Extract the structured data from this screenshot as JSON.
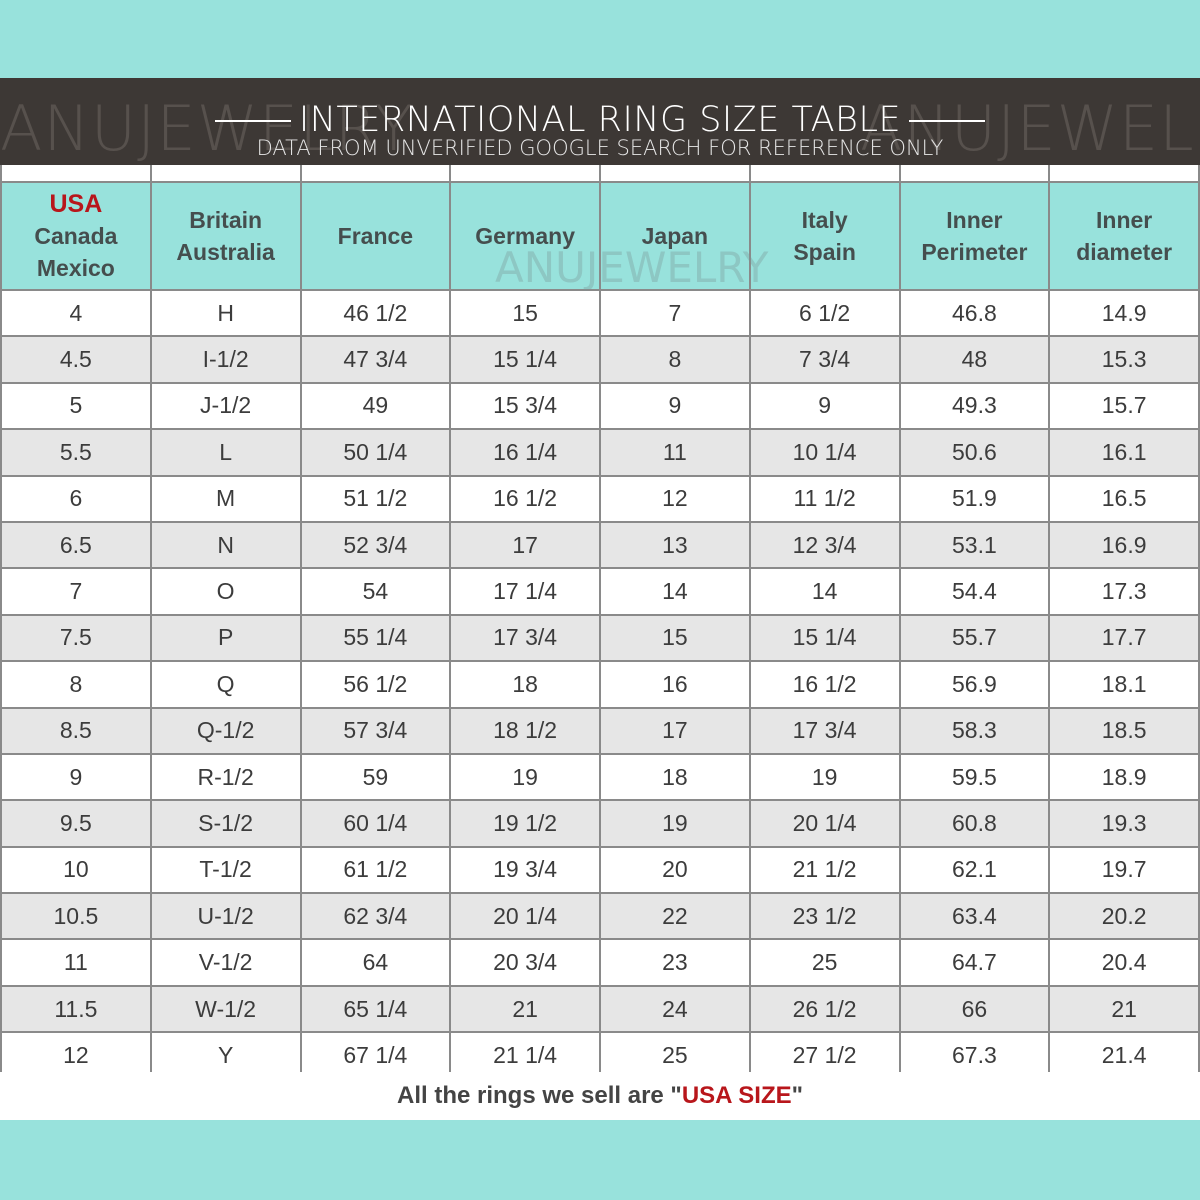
{
  "watermark": "ANUJEWELRY",
  "banner": {
    "title": "INTERNATIONAL RING SIZE TABLE",
    "subtitle": "DATA FROM UNVERIFIED GOOGLE SEARCH FOR REFERENCE ONLY"
  },
  "headers": [
    {
      "lines": [
        "USA",
        "Canada",
        "Mexico"
      ]
    },
    {
      "lines": [
        "Britain",
        "Australia"
      ]
    },
    {
      "lines": [
        "France"
      ]
    },
    {
      "lines": [
        "Germany"
      ]
    },
    {
      "lines": [
        "Japan"
      ]
    },
    {
      "lines": [
        "Italy",
        "Spain"
      ]
    },
    {
      "lines": [
        "Inner",
        "Perimeter"
      ]
    },
    {
      "lines": [
        "Inner",
        "diameter"
      ]
    }
  ],
  "rows": [
    [
      "4",
      "H",
      "46 1/2",
      "15",
      "7",
      "6 1/2",
      "46.8",
      "14.9"
    ],
    [
      "4.5",
      "I-1/2",
      "47 3/4",
      "15 1/4",
      "8",
      "7 3/4",
      "48",
      "15.3"
    ],
    [
      "5",
      "J-1/2",
      "49",
      "15 3/4",
      "9",
      "9",
      "49.3",
      "15.7"
    ],
    [
      "5.5",
      "L",
      "50 1/4",
      "16 1/4",
      "11",
      "10 1/4",
      "50.6",
      "16.1"
    ],
    [
      "6",
      "M",
      "51 1/2",
      "16 1/2",
      "12",
      "11 1/2",
      "51.9",
      "16.5"
    ],
    [
      "6.5",
      "N",
      "52 3/4",
      "17",
      "13",
      "12 3/4",
      "53.1",
      "16.9"
    ],
    [
      "7",
      "O",
      "54",
      "17 1/4",
      "14",
      "14",
      "54.4",
      "17.3"
    ],
    [
      "7.5",
      "P",
      "55 1/4",
      "17 3/4",
      "15",
      "15 1/4",
      "55.7",
      "17.7"
    ],
    [
      "8",
      "Q",
      "56 1/2",
      "18",
      "16",
      "16 1/2",
      "56.9",
      "18.1"
    ],
    [
      "8.5",
      "Q-1/2",
      "57 3/4",
      "18 1/2",
      "17",
      "17 3/4",
      "58.3",
      "18.5"
    ],
    [
      "9",
      "R-1/2",
      "59",
      "19",
      "18",
      "19",
      "59.5",
      "18.9"
    ],
    [
      "9.5",
      "S-1/2",
      "60 1/4",
      "19 1/2",
      "19",
      "20 1/4",
      "60.8",
      "19.3"
    ],
    [
      "10",
      "T-1/2",
      "61 1/2",
      "19 3/4",
      "20",
      "21 1/2",
      "62.1",
      "19.7"
    ],
    [
      "10.5",
      "U-1/2",
      "62 3/4",
      "20 1/4",
      "22",
      "23 1/2",
      "63.4",
      "20.2"
    ],
    [
      "11",
      "V-1/2",
      "64",
      "20 3/4",
      "23",
      "25",
      "64.7",
      "20.4"
    ],
    [
      "11.5",
      "W-1/2",
      "65 1/4",
      "21",
      "24",
      "26 1/2",
      "66",
      "21"
    ],
    [
      "12",
      "Y",
      "67 1/4",
      "21 1/4",
      "25",
      "27 1/2",
      "67.3",
      "21.4"
    ]
  ],
  "footer": {
    "prefix": "All the rings we sell are \"",
    "highlight": "USA SIZE",
    "suffix": "\""
  },
  "colors": {
    "teal": "#98e2dc",
    "banner": "#3d3835",
    "accent_red": "#b8161b"
  }
}
